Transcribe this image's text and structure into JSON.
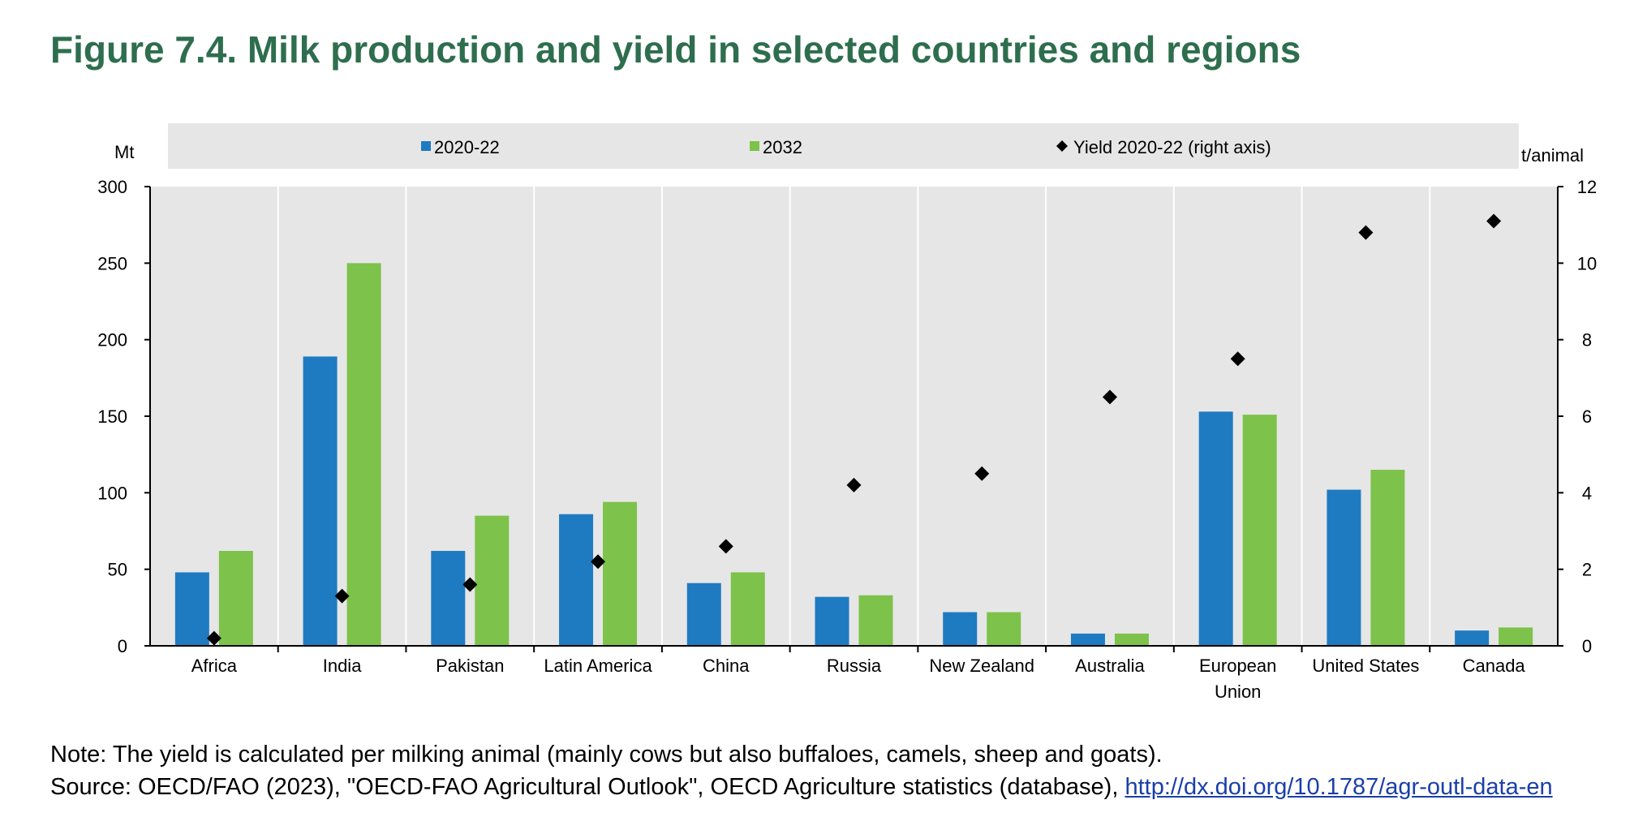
{
  "title": "Figure 7.4. Milk production and yield in selected countries and regions",
  "colors": {
    "series_2020": "#1f7bc1",
    "series_2032": "#7dc24a",
    "yield": "#000000",
    "plot_bg": "#e6e6e6",
    "title": "#2e6e4e"
  },
  "chart_data": {
    "type": "bar",
    "categories": [
      "Africa",
      "India",
      "Pakistan",
      "Latin America",
      "China",
      "Russia",
      "New Zealand",
      "Australia",
      "European Union",
      "United States",
      "Canada"
    ],
    "category_lines": [
      [
        "Africa"
      ],
      [
        "India"
      ],
      [
        "Pakistan"
      ],
      [
        "Latin America"
      ],
      [
        "China"
      ],
      [
        "Russia"
      ],
      [
        "New Zealand"
      ],
      [
        "Australia"
      ],
      [
        "European",
        "Union"
      ],
      [
        "United States"
      ],
      [
        "Canada"
      ]
    ],
    "series": [
      {
        "name": "2020-22",
        "type": "bar",
        "axis": "left",
        "values": [
          48,
          189,
          62,
          86,
          41,
          32,
          22,
          8,
          153,
          102,
          10
        ]
      },
      {
        "name": "2032",
        "type": "bar",
        "axis": "left",
        "values": [
          62,
          250,
          85,
          94,
          48,
          33,
          22,
          8,
          151,
          115,
          12
        ]
      },
      {
        "name": "Yield 2020-22 (right axis)",
        "type": "scatter",
        "axis": "right",
        "values": [
          0.2,
          1.3,
          1.6,
          2.2,
          2.6,
          4.2,
          4.5,
          6.5,
          7.5,
          10.8,
          11.1
        ]
      }
    ],
    "left_axis": {
      "unit": "Mt",
      "ylim": [
        0,
        300
      ],
      "ticks": [
        0,
        50,
        100,
        150,
        200,
        250,
        300
      ]
    },
    "right_axis": {
      "unit": "t/animal",
      "ylim": [
        0,
        12
      ],
      "ticks": [
        0,
        2,
        4,
        6,
        8,
        10,
        12
      ]
    },
    "legend": {
      "position": "top",
      "entries": [
        "2020-22",
        "2032",
        "Yield 2020-22 (right axis)"
      ]
    },
    "grid": "vertical separators between categories"
  },
  "notes": {
    "note": "Note: The yield is calculated per milking animal (mainly cows but also buffaloes, camels, sheep and goats).",
    "source_prefix": "Source: OECD/FAO (2023), \"OECD-FAO Agricultural Outlook\", OECD Agriculture statistics (database), ",
    "source_link": "http://dx.doi.org/10.1787/agr-outl-data-en"
  }
}
